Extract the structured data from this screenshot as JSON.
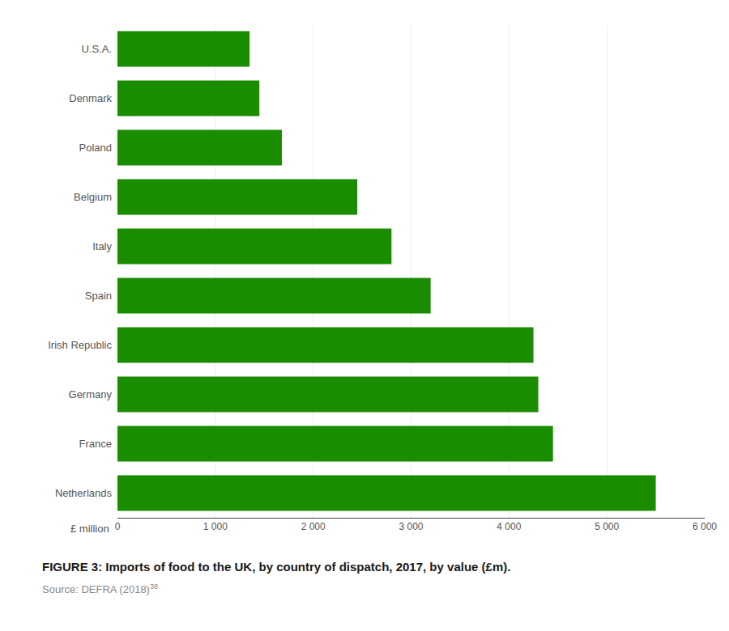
{
  "chart_data": {
    "type": "bar",
    "orientation": "horizontal",
    "title": "FIGURE 3: Imports of food to the UK, by country of dispatch, 2017, by value (£m).",
    "annotations": [
      "Source: DEFRA (2018)",
      "38"
    ],
    "xlabel": "£ million",
    "categories": [
      "Netherlands",
      "France",
      "Germany",
      "Irish Republic",
      "Spain",
      "Italy",
      "Belgium",
      "Poland",
      "Denmark",
      "U.S.A."
    ],
    "values": [
      5500,
      4450,
      4300,
      4250,
      3200,
      2800,
      2450,
      1680,
      1450,
      1350
    ],
    "color": "#1a8c00",
    "xlim": [
      0,
      6000
    ],
    "xticks": [
      0,
      {
        "value": 1000,
        "label": "1 000"
      },
      {
        "value": 2000,
        "label": "2 000"
      },
      {
        "value": 3000,
        "label": "3 000"
      },
      {
        "value": 4000,
        "label": "4 000"
      },
      {
        "value": 5000,
        "label": "5 000"
      },
      {
        "value": 6000,
        "label": "6 000"
      }
    ],
    "grid": true
  }
}
